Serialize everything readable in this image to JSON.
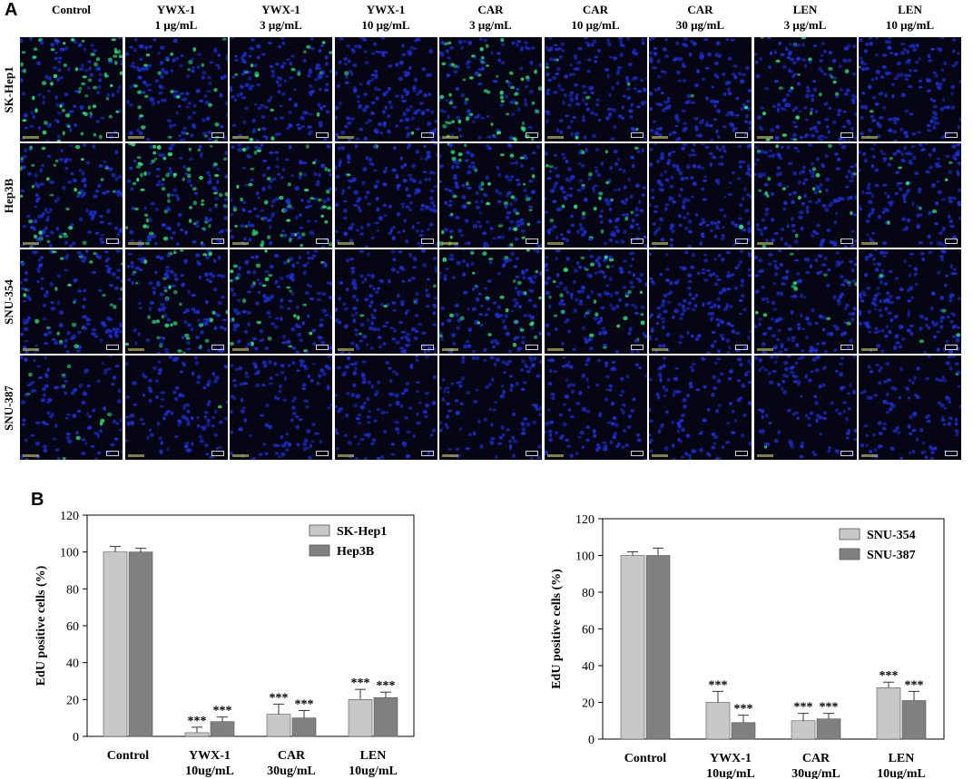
{
  "panel_a": {
    "label": "A",
    "columns": [
      [
        "Control",
        ""
      ],
      [
        "YWX-1",
        "1 μg/mL"
      ],
      [
        "YWX-1",
        "3 μg/mL"
      ],
      [
        "YWX-1",
        "10 μg/mL"
      ],
      [
        "CAR",
        "3 μg/mL"
      ],
      [
        "CAR",
        "10 μg/mL"
      ],
      [
        "CAR",
        "30 μg/mL"
      ],
      [
        "LEN",
        "3 μg/mL"
      ],
      [
        "LEN",
        "10 μg/mL"
      ]
    ],
    "rows": [
      "SK-Hep1",
      "Hep3B",
      "SNU-354",
      "SNU-387"
    ],
    "cell_color": "#1a2fd6",
    "edu_color": "#27e07a",
    "edu_level": [
      [
        0.95,
        0.55,
        0.25,
        0.04,
        0.9,
        0.12,
        0.02,
        0.3,
        0.05
      ],
      [
        0.5,
        0.75,
        0.7,
        0.04,
        0.55,
        0.3,
        0.02,
        0.2,
        0.05
      ],
      [
        0.45,
        0.55,
        0.35,
        0.04,
        0.35,
        0.45,
        0.02,
        0.15,
        0.12
      ],
      [
        0.12,
        0.03,
        0.03,
        0.02,
        0.02,
        0.02,
        0.02,
        0.03,
        0.02
      ]
    ]
  },
  "panel_b": {
    "label": "B",
    "chart_data": [
      {
        "type": "bar",
        "ylabel": "EdU positive cells  (%)",
        "ylim": [
          0,
          120
        ],
        "yticks": [
          0,
          20,
          40,
          60,
          80,
          100,
          120
        ],
        "categories": [
          [
            "Control",
            ""
          ],
          [
            "YWX-1",
            "10ug/mL"
          ],
          [
            "CAR",
            "30ug/mL"
          ],
          [
            "LEN",
            "10ug/mL"
          ]
        ],
        "legend_position": "top-right",
        "series": [
          {
            "name": "SK-Hep1",
            "color": "#c8c8c8",
            "values": [
              100,
              2,
              12,
              20
            ],
            "errors": [
              3,
              3,
              5.5,
              5.5
            ],
            "sig": [
              "",
              "***",
              "***",
              "***"
            ]
          },
          {
            "name": "Hep3B",
            "color": "#808080",
            "values": [
              100,
              8,
              10,
              21
            ],
            "errors": [
              2,
              2.5,
              4,
              3
            ],
            "sig": [
              "",
              "***",
              "***",
              "***"
            ]
          }
        ]
      },
      {
        "type": "bar",
        "ylabel": "EdU positive cells  (%)",
        "ylim": [
          0,
          120
        ],
        "yticks": [
          0,
          20,
          40,
          60,
          80,
          100,
          120
        ],
        "categories": [
          [
            "Control",
            ""
          ],
          [
            "YWX-1",
            "10ug/mL"
          ],
          [
            "CAR",
            "30ug/mL"
          ],
          [
            "LEN",
            "10ug/mL"
          ]
        ],
        "legend_position": "top-right",
        "series": [
          {
            "name": "SNU-354",
            "color": "#c8c8c8",
            "values": [
              100,
              20,
              10,
              28
            ],
            "errors": [
              2,
              6,
              4,
              3
            ],
            "sig": [
              "",
              "***",
              "***",
              "***"
            ]
          },
          {
            "name": "SNU-387",
            "color": "#808080",
            "values": [
              100,
              9,
              11,
              21
            ],
            "errors": [
              4,
              4,
              3,
              5
            ],
            "sig": [
              "",
              "***",
              "***",
              "***"
            ]
          }
        ]
      }
    ]
  }
}
